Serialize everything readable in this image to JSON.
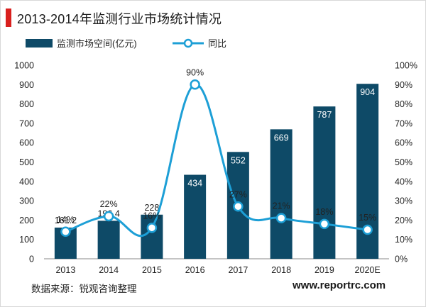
{
  "title": "2013-2014年监测行业市场统计情况",
  "source": "数据来源：锐观咨询整理",
  "website": "www.reportrc.com",
  "colors": {
    "bar": "#0e4a67",
    "line": "#1d9fd6",
    "title_accent": "#d9201e"
  },
  "chart_data": {
    "type": "bar",
    "categories": [
      "2013",
      "2014",
      "2015",
      "2016",
      "2017",
      "2018",
      "2019",
      "2020E"
    ],
    "series": [
      {
        "name": "监测市场空间(亿元)",
        "type": "bar",
        "axis": "left",
        "values": [
          161.2,
          196.4,
          228,
          434,
          552,
          669,
          787,
          904
        ],
        "labels": [
          "161.2",
          "196.4",
          "228",
          "434",
          "552",
          "669",
          "787",
          "904"
        ]
      },
      {
        "name": "同比",
        "type": "line",
        "axis": "right",
        "values": [
          14,
          22,
          16,
          90,
          27,
          21,
          18,
          15
        ],
        "labels": [
          "14%",
          "22%",
          "16%",
          "90%",
          "27%",
          "21%",
          "18%",
          "15%"
        ]
      }
    ],
    "y_left": {
      "min": 0,
      "max": 1000,
      "ticks": [
        "0",
        "100",
        "200",
        "300",
        "400",
        "500",
        "600",
        "700",
        "800",
        "900",
        "1000"
      ]
    },
    "y_right": {
      "min": 0,
      "max": 100,
      "ticks": [
        "0%",
        "10%",
        "20%",
        "30%",
        "40%",
        "50%",
        "60%",
        "70%",
        "80%",
        "90%",
        "100%"
      ]
    },
    "legend": "top-left",
    "grid": false
  }
}
